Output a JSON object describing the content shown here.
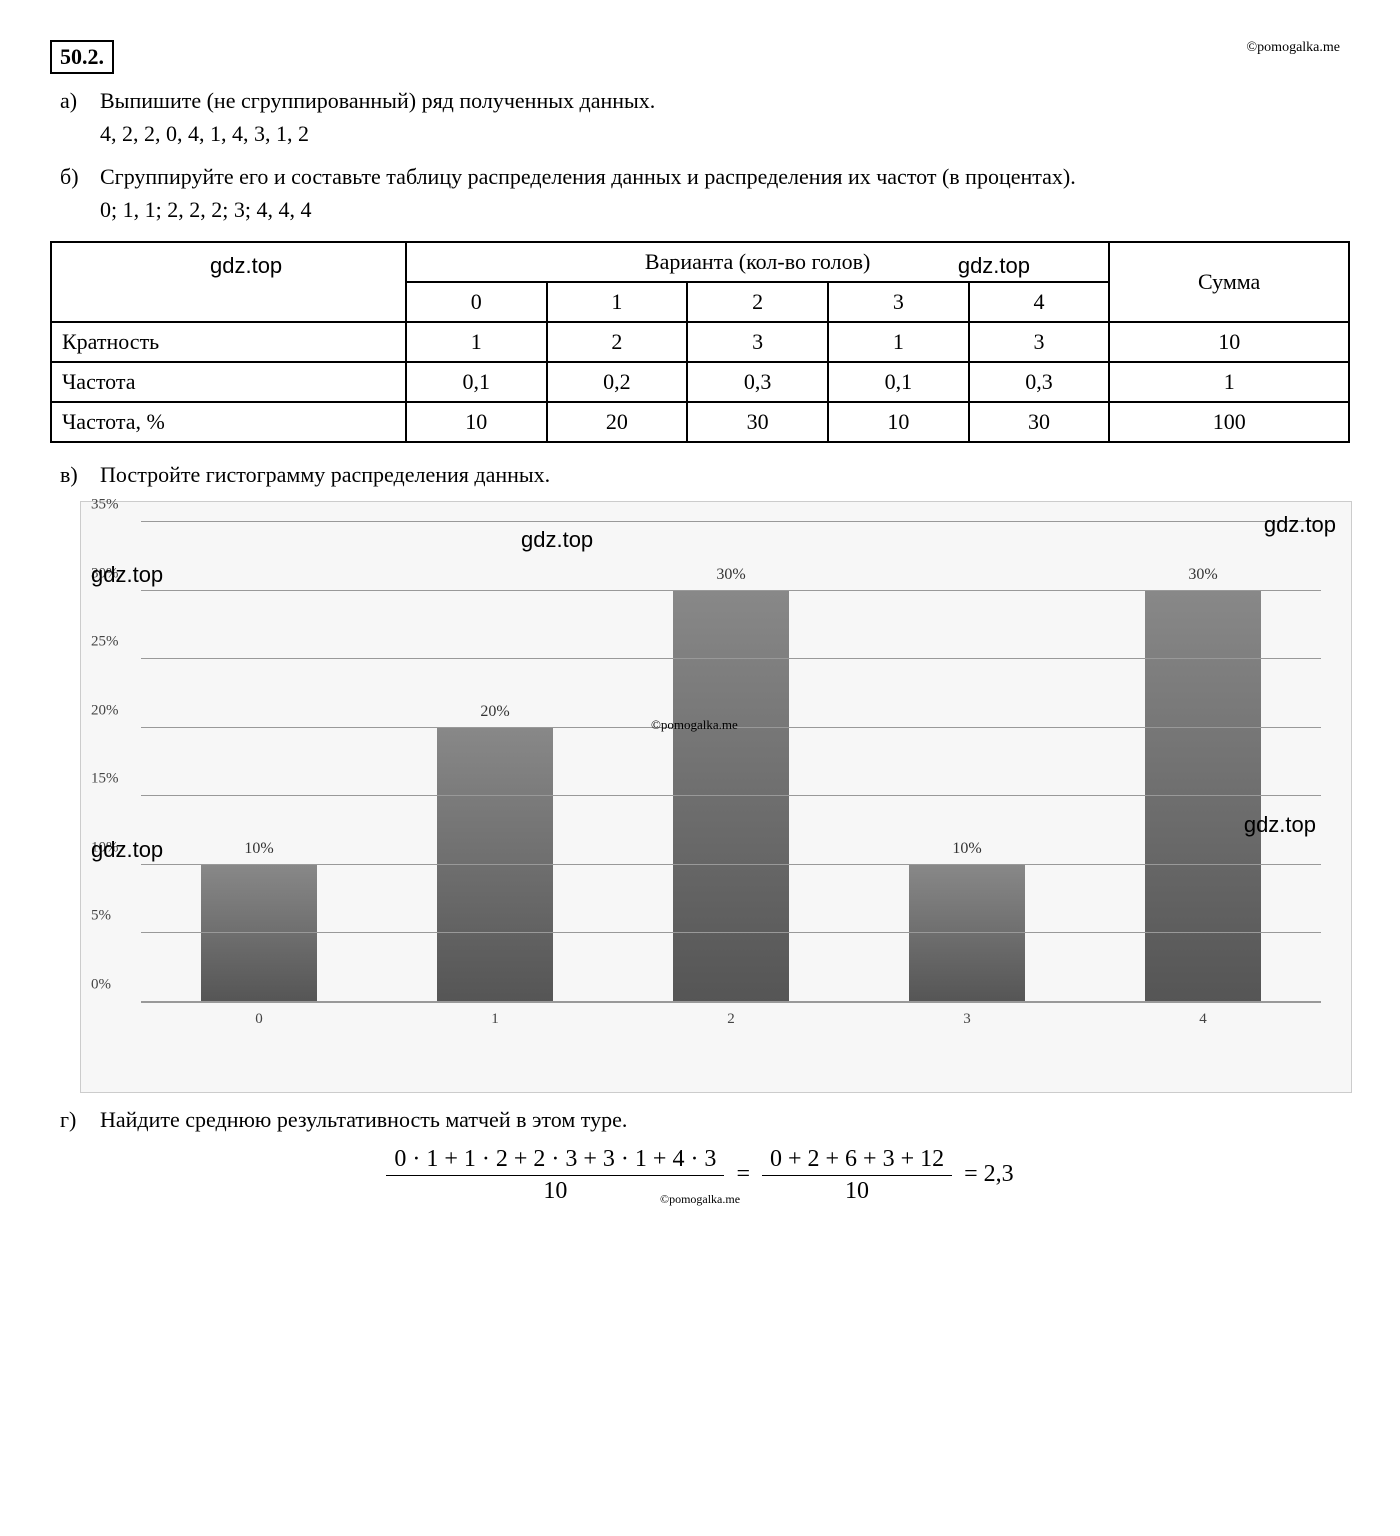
{
  "watermark_top": "©pomogalka.me",
  "problem_number": "50.2.",
  "tasks": {
    "a": {
      "letter": "а)",
      "text": "Выпишите (не сгруппированный) ряд полученных данных.",
      "data": "4, 2, 2, 0, 4, 1, 4, 3, 1, 2"
    },
    "b": {
      "letter": "б)",
      "text": "Сгруппируйте его и составьте таблицу распределения данных и распределения их частот (в процентах).",
      "data": "0; 1, 1; 2, 2, 2; 3; 4, 4, 4"
    },
    "c": {
      "letter": "в)",
      "text": "Постройте гистограмму распределения данных."
    },
    "d": {
      "letter": "г)",
      "text": "Найдите среднюю результативность матчей в этом туре."
    }
  },
  "table": {
    "variant_header": "Варианта (кол-во голов)",
    "sum_header": "Сумма",
    "variants": [
      "0",
      "1",
      "2",
      "3",
      "4"
    ],
    "rows": [
      {
        "label": "Кратность",
        "cells": [
          "1",
          "2",
          "3",
          "1",
          "3"
        ],
        "sum": "10"
      },
      {
        "label": "Частота",
        "cells": [
          "0,1",
          "0,2",
          "0,3",
          "0,1",
          "0,3"
        ],
        "sum": "1"
      },
      {
        "label": "Частота, %",
        "cells": [
          "10",
          "20",
          "30",
          "10",
          "30"
        ],
        "sum": "100"
      }
    ],
    "wm1": "gdz.top",
    "wm2": "gdz.top"
  },
  "chart": {
    "ylim_max": 35,
    "yticks": [
      "0%",
      "5%",
      "10%",
      "15%",
      "20%",
      "25%",
      "30%",
      "35%"
    ],
    "bars": [
      {
        "x": "0",
        "value": 10,
        "label": "10%"
      },
      {
        "x": "1",
        "value": 20,
        "label": "20%"
      },
      {
        "x": "2",
        "value": 30,
        "label": "30%"
      },
      {
        "x": "3",
        "value": 10,
        "label": "10%"
      },
      {
        "x": "4",
        "value": 30,
        "label": "30%"
      }
    ],
    "grid_color": "#999999",
    "bar_color_top": "#888888",
    "bar_color_bottom": "#555555",
    "background_color": "#f7f7f7",
    "wm": "gdz.top",
    "wm_small": "©pomogalka.me"
  },
  "equation": {
    "num1": "0 · 1 + 1 · 2 + 2 · 3 + 3 · 1 + 4 · 3",
    "den1": "10",
    "num2": "0 + 2 + 6 + 3 + 12",
    "den2": "10",
    "result": "2,3",
    "wm": "©pomogalka.me"
  }
}
